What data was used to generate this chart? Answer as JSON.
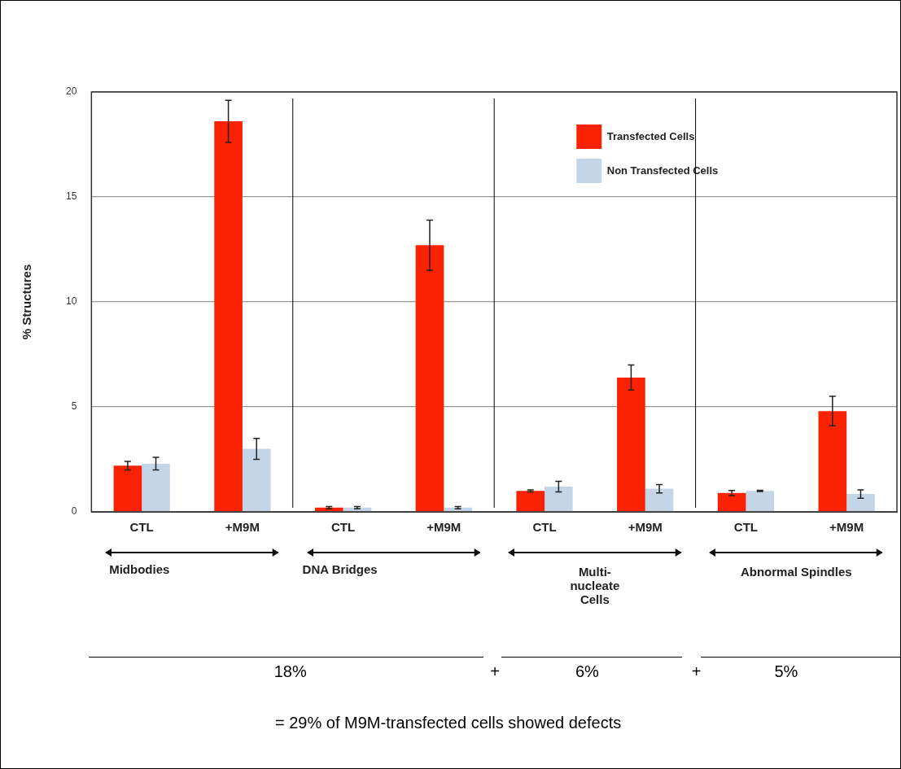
{
  "chart_data": {
    "type": "bar",
    "ylabel": "% Structures",
    "categories": [
      "CTL",
      "+M9M",
      "CTL",
      "+M9M",
      "CTL",
      "+M9M",
      "CTL",
      "+M9M"
    ],
    "series": [
      {
        "name": "Transfected Cells",
        "color": "#fa2200",
        "values": [
          2.2,
          18.6,
          0.2,
          12.7,
          1.0,
          6.4,
          0.9,
          4.8
        ],
        "errors": [
          0.2,
          1.0,
          0.05,
          1.2,
          0.05,
          0.6,
          0.12,
          0.7
        ]
      },
      {
        "name": "Non Transfected Cells",
        "color": "#c5d5e8",
        "values": [
          2.3,
          3.0,
          0.2,
          0.2,
          1.2,
          1.1,
          1.0,
          0.85
        ],
        "errors": [
          0.3,
          0.5,
          0.05,
          0.05,
          0.25,
          0.2,
          0.03,
          0.2
        ]
      }
    ],
    "ylim": [
      0,
      20
    ],
    "yticks": [
      0,
      5,
      10,
      15,
      20
    ],
    "grid": "y",
    "legend": "top right",
    "annotations": [
      "Midbodies",
      "DNA Bridges",
      "Multi-nucleate Cells",
      "Abnormal Spindles",
      "18%",
      "+",
      "6%",
      "+",
      "5%",
      "= 29% of M9M-transfected cells showed defects"
    ]
  }
}
